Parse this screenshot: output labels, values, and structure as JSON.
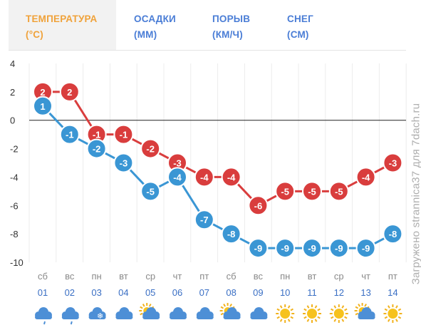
{
  "tabs": [
    {
      "name": "ТЕМПЕРАТУРА",
      "unit": "(°C)",
      "active": true
    },
    {
      "name": "ОСАДКИ",
      "unit": "(ММ)",
      "active": false
    },
    {
      "name": "ПОРЫВ",
      "unit": "(КМ/Ч)",
      "active": false
    },
    {
      "name": "СНЕГ",
      "unit": "(СМ)",
      "active": false
    }
  ],
  "colors": {
    "tab_accent": "#f0a23a",
    "tab_link": "#4a7dd6",
    "day_temp": "#d93d3d",
    "night_temp": "#3a96d4"
  },
  "watermark": "Загружено strannica37 для 7dach.ru",
  "chart_data": {
    "type": "line",
    "ylim": [
      -10,
      4
    ],
    "yticks": [
      4,
      2,
      0,
      -2,
      -4,
      -6,
      -8,
      -10
    ],
    "weekdays": [
      "сб",
      "вс",
      "пн",
      "вт",
      "ср",
      "чт",
      "пт",
      "сб",
      "вс",
      "пн",
      "вт",
      "ср",
      "чт",
      "пт"
    ],
    "dates": [
      "01",
      "02",
      "03",
      "04",
      "05",
      "06",
      "07",
      "08",
      "09",
      "10",
      "11",
      "12",
      "13",
      "14"
    ],
    "series": [
      {
        "values": [
          2,
          2,
          -1,
          -1,
          -2,
          -3,
          -4,
          -4,
          -6,
          -5,
          -5,
          -5,
          -4,
          -3
        ],
        "color": "#d93d3d"
      },
      {
        "values": [
          1,
          -1,
          -2,
          -3,
          -5,
          -4,
          -7,
          -8,
          -9,
          -9,
          -9,
          -9,
          -9,
          -8
        ],
        "color": "#3a96d4"
      }
    ],
    "weather_icons": [
      "cloud-rain-icon",
      "cloud-rain-icon",
      "cloud-snow-icon",
      "cloud-icon",
      "partly-cloudy-icon",
      "cloud-icon",
      "cloud-icon",
      "partly-cloudy-icon",
      "cloud-icon",
      "sun-icon",
      "sun-icon",
      "sun-icon",
      "partly-cloudy-icon",
      "sun-icon"
    ],
    "grid": true
  }
}
